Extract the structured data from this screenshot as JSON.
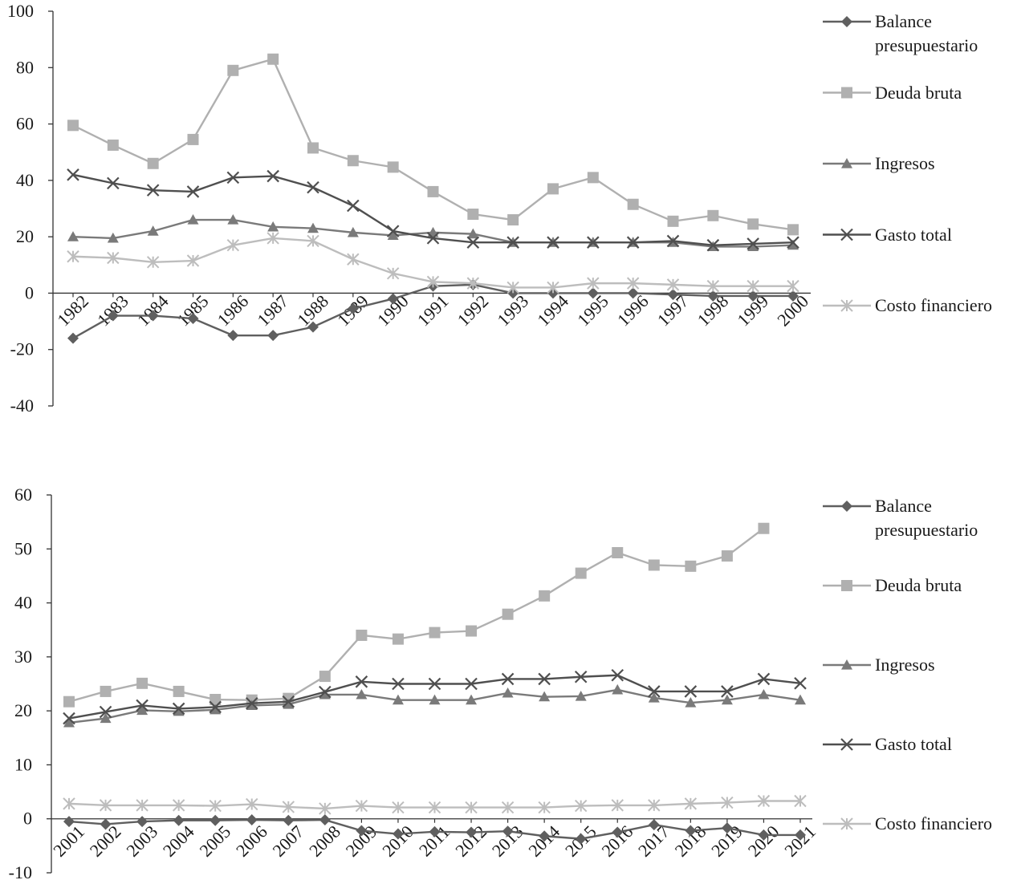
{
  "chart_data": [
    {
      "type": "line",
      "categories": [
        "1982",
        "1983",
        "1984",
        "1985",
        "1986",
        "1987",
        "1988",
        "1989",
        "1990",
        "1991",
        "1992",
        "1993",
        "1994",
        "1995",
        "1996",
        "1997",
        "1998",
        "1999",
        "2000"
      ],
      "ylim": [
        -40,
        100
      ],
      "yticks": [
        -40,
        -20,
        0,
        20,
        40,
        60,
        80,
        100
      ],
      "legend": "right",
      "series": [
        {
          "name": "Balance presupuestario",
          "color": "#5f5f5f",
          "marker": "diamond",
          "values": [
            -16,
            -8,
            -8,
            -9,
            -15,
            -15,
            -12,
            -5.5,
            -2,
            2.5,
            3,
            0,
            0,
            0,
            0,
            -0.5,
            -1,
            -1,
            -1
          ]
        },
        {
          "name": "Deuda bruta",
          "color": "#b0b0b0",
          "marker": "square",
          "values": [
            59.5,
            52.5,
            46,
            54.5,
            79,
            83,
            51.5,
            47,
            44.7,
            36,
            28,
            26,
            37,
            41,
            31.5,
            25.5,
            27.5,
            24.5,
            22.5
          ]
        },
        {
          "name": "Ingresos",
          "color": "#7a7a7a",
          "marker": "triangle",
          "values": [
            20,
            19.5,
            22,
            26,
            26,
            23.5,
            23,
            21.5,
            20.5,
            21.5,
            21,
            18,
            18,
            18,
            18,
            18,
            16.5,
            16.5,
            17
          ]
        },
        {
          "name": "Gasto total",
          "color": "#4f4f4f",
          "marker": "x",
          "values": [
            42,
            39,
            36.5,
            36,
            41,
            41.5,
            37.5,
            31,
            22,
            19.5,
            18,
            18,
            18,
            18,
            18,
            18.5,
            17,
            17.5,
            18
          ]
        },
        {
          "name": "Costo financiero",
          "color": "#bdbdbd",
          "marker": "asterisk",
          "values": [
            13,
            12.5,
            11,
            11.5,
            17,
            19.5,
            18.5,
            12,
            7,
            4,
            3.5,
            2,
            2,
            3.5,
            3.5,
            3,
            2.5,
            2.5,
            2.5
          ]
        }
      ]
    },
    {
      "type": "line",
      "categories": [
        "2001",
        "2002",
        "2003",
        "2004",
        "2005",
        "2006",
        "2007",
        "2008",
        "2009",
        "2010",
        "2011",
        "2012",
        "2013",
        "2014",
        "2015",
        "2016",
        "2017",
        "2018",
        "2019",
        "2020",
        "2021"
      ],
      "ylim": [
        -10,
        60
      ],
      "yticks": [
        -10,
        0,
        10,
        20,
        30,
        40,
        50,
        60
      ],
      "legend": "right",
      "series": [
        {
          "name": "Balance presupuestario",
          "color": "#5f5f5f",
          "marker": "diamond",
          "values": [
            -0.5,
            -1,
            -0.5,
            -0.3,
            -0.3,
            -0.2,
            -0.3,
            -0.2,
            -2.2,
            -2.8,
            -2.4,
            -2.5,
            -2.3,
            -3.2,
            -3.7,
            -2.5,
            -1.1,
            -2.2,
            -1.7,
            -3,
            -3
          ]
        },
        {
          "name": "Deuda bruta",
          "color": "#b0b0b0",
          "marker": "square",
          "values": [
            21.7,
            23.6,
            25.1,
            23.6,
            22.1,
            22,
            22.3,
            26.4,
            34,
            33.3,
            34.5,
            34.8,
            37.9,
            41.3,
            45.5,
            49.3,
            47,
            46.8,
            48.7,
            53.8,
            null
          ]
        },
        {
          "name": "Ingresos",
          "color": "#7a7a7a",
          "marker": "triangle",
          "values": [
            17.8,
            18.6,
            20.1,
            19.9,
            20.2,
            21,
            21.2,
            23,
            23,
            22,
            22,
            22,
            23.3,
            22.6,
            22.7,
            23.9,
            22.4,
            21.5,
            22,
            23,
            22
          ]
        },
        {
          "name": "Gasto total",
          "color": "#4f4f4f",
          "marker": "x",
          "values": [
            18.6,
            19.8,
            21,
            20.4,
            20.7,
            21.4,
            21.7,
            23.5,
            25.4,
            25,
            25,
            25,
            25.9,
            25.9,
            26.3,
            26.6,
            23.6,
            23.6,
            23.6,
            25.9,
            25.1
          ]
        },
        {
          "name": "Costo financiero",
          "color": "#bdbdbd",
          "marker": "asterisk",
          "values": [
            2.8,
            2.5,
            2.5,
            2.5,
            2.4,
            2.7,
            2.2,
            1.9,
            2.4,
            2.1,
            2.1,
            2.1,
            2.1,
            2.1,
            2.4,
            2.5,
            2.5,
            2.8,
            3,
            3.3,
            3.3
          ]
        }
      ]
    }
  ]
}
